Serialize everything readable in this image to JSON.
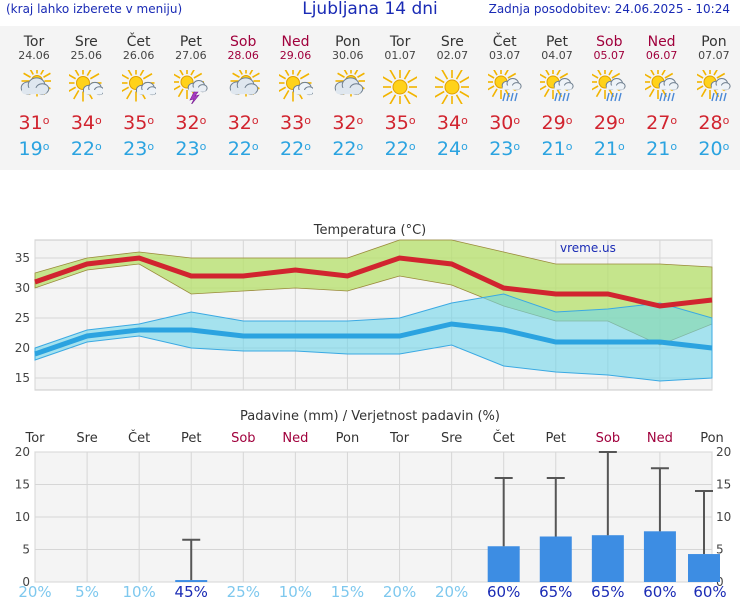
{
  "header": {
    "menu_hint": "(kraj lahko izberete v meniju)",
    "title": "Ljubljana 14 dni",
    "updated": "Zadnja posodobitev: 24.06.2025 - 10:24"
  },
  "days": [
    {
      "name": "Tor",
      "date": "24.06",
      "weekend": false,
      "icon": "partly-cloudy-icon",
      "max": "31",
      "min": "19"
    },
    {
      "name": "Sre",
      "date": "25.06",
      "weekend": false,
      "icon": "sun-cloud-icon",
      "max": "34",
      "min": "22"
    },
    {
      "name": "Čet",
      "date": "26.06",
      "weekend": false,
      "icon": "sun-cloud-icon",
      "max": "35",
      "min": "23"
    },
    {
      "name": "Pet",
      "date": "27.06",
      "weekend": false,
      "icon": "thunderstorm-icon",
      "max": "32",
      "min": "23"
    },
    {
      "name": "Sob",
      "date": "28.06",
      "weekend": true,
      "icon": "partly-cloudy-icon",
      "max": "32",
      "min": "22"
    },
    {
      "name": "Ned",
      "date": "29.06",
      "weekend": true,
      "icon": "sun-cloud-icon",
      "max": "33",
      "min": "22"
    },
    {
      "name": "Pon",
      "date": "30.06",
      "weekend": false,
      "icon": "partly-cloudy-icon",
      "max": "32",
      "min": "22"
    },
    {
      "name": "Tor",
      "date": "01.07",
      "weekend": false,
      "icon": "sun-icon",
      "max": "35",
      "min": "22"
    },
    {
      "name": "Sre",
      "date": "02.07",
      "weekend": false,
      "icon": "sun-icon",
      "max": "34",
      "min": "24"
    },
    {
      "name": "Čet",
      "date": "03.07",
      "weekend": false,
      "icon": "sun-rain-icon",
      "max": "30",
      "min": "23"
    },
    {
      "name": "Pet",
      "date": "04.07",
      "weekend": false,
      "icon": "sun-rain-icon",
      "max": "29",
      "min": "21"
    },
    {
      "name": "Sob",
      "date": "05.07",
      "weekend": true,
      "icon": "sun-rain-icon",
      "max": "29",
      "min": "21"
    },
    {
      "name": "Ned",
      "date": "06.07",
      "weekend": true,
      "icon": "sun-rain-icon",
      "max": "27",
      "min": "21"
    },
    {
      "name": "Pon",
      "date": "07.07",
      "weekend": false,
      "icon": "sun-rain-icon",
      "max": "28",
      "min": "20"
    }
  ],
  "colors": {
    "max_temp": "#d1242f",
    "min_temp": "#2ba3e0",
    "weekend": "#a0003c",
    "max_band": "#b5e06a",
    "min_band": "#6fd6ea",
    "overlap": "#55c878",
    "precip_bar": "#3d8de3",
    "prob_hi": "#1a2bb5",
    "prob_lo": "#7ec8ee"
  },
  "chart_data": [
    {
      "type": "line",
      "title": "Temperatura (°C)",
      "watermark": "vreme.us",
      "categories": [
        "24.06",
        "25.06",
        "26.06",
        "27.06",
        "28.06",
        "29.06",
        "30.06",
        "01.07",
        "02.07",
        "03.07",
        "04.07",
        "05.07",
        "06.07",
        "07.07"
      ],
      "ylim": [
        13,
        38
      ],
      "yticks": [
        "15",
        "20",
        "25",
        "30",
        "35"
      ],
      "series": [
        {
          "name": "max",
          "values": [
            31,
            34,
            35,
            32,
            32,
            33,
            32,
            35,
            34,
            30,
            29,
            29,
            27,
            28
          ],
          "band_low": [
            30,
            33,
            34,
            29,
            29.5,
            30,
            29.5,
            32,
            30.5,
            27,
            24.5,
            24.5,
            20.5,
            24
          ],
          "band_high": [
            32.5,
            35,
            36,
            35,
            35,
            35,
            35,
            38,
            38,
            36,
            34,
            34,
            34,
            33.5
          ]
        },
        {
          "name": "min",
          "values": [
            19,
            22,
            23,
            23,
            22,
            22,
            22,
            22,
            24,
            23,
            21,
            21,
            21,
            20
          ],
          "band_low": [
            18,
            21,
            22,
            20,
            19.5,
            19.5,
            19,
            19,
            20.5,
            17,
            16,
            15.5,
            14.5,
            15
          ],
          "band_high": [
            20,
            23,
            24,
            26,
            24.5,
            24.5,
            24.5,
            25,
            27.5,
            29,
            26,
            26.5,
            27.5,
            25
          ]
        }
      ]
    },
    {
      "type": "bar",
      "title": "Padavine (mm) / Verjetnost padavin (%)",
      "day_names": [
        "Tor",
        "Sre",
        "Čet",
        "Pet",
        "Sob",
        "Ned",
        "Pon",
        "Tor",
        "Sre",
        "Čet",
        "Pet",
        "Sob",
        "Ned",
        "Pon"
      ],
      "ylim": [
        0,
        20
      ],
      "yticks": [
        "0",
        "5",
        "10",
        "15",
        "20"
      ],
      "precip_mm": [
        0,
        0,
        0,
        0.3,
        0,
        0,
        0,
        0,
        0,
        5.5,
        7,
        7.2,
        7.8,
        4.3
      ],
      "precip_max_mm": [
        0,
        0,
        0,
        6.5,
        0,
        0,
        0,
        0,
        0,
        16,
        16,
        20,
        17.5,
        14
      ],
      "probability": [
        "20%",
        "5%",
        "10%",
        "45%",
        "25%",
        "10%",
        "15%",
        "20%",
        "20%",
        "60%",
        "65%",
        "65%",
        "60%",
        "60%"
      ]
    }
  ]
}
